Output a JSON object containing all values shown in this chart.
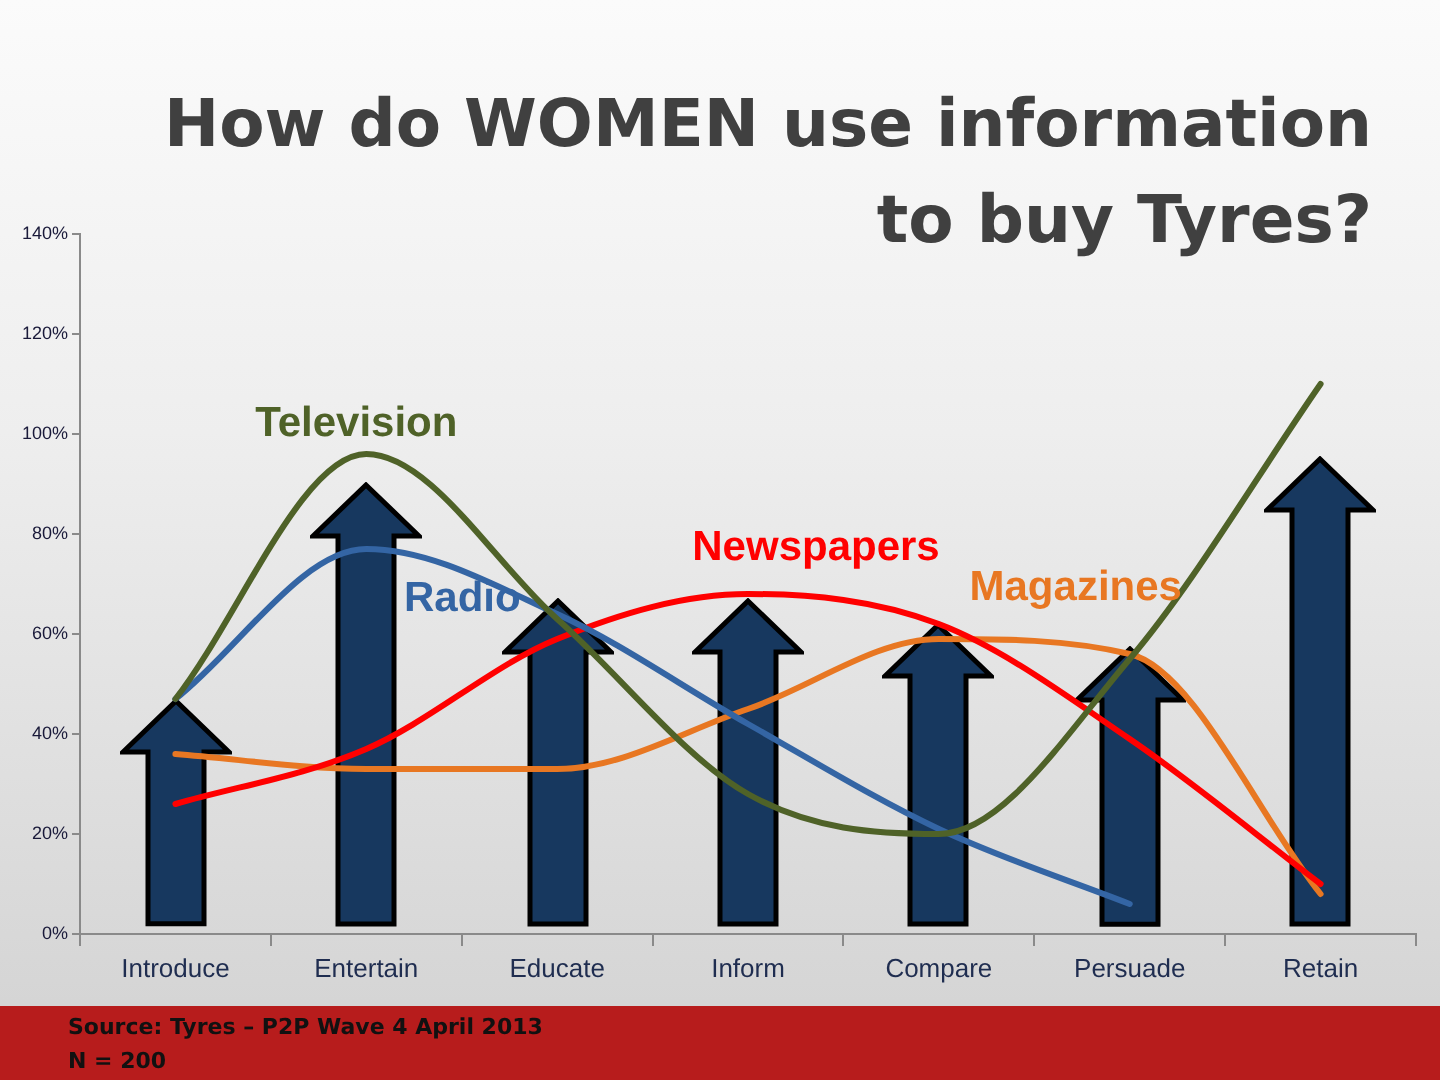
{
  "chart_data": {
    "type": "line",
    "title": "How do WOMEN use information to buy Tyres?",
    "categories": [
      "Introduce",
      "Entertain",
      "Educate",
      "Inform",
      "Compare",
      "Persuade",
      "Retain"
    ],
    "series": [
      {
        "name": "Television",
        "color": "#4f6228",
        "values": [
          47,
          96,
          63,
          28,
          20,
          55,
          110
        ]
      },
      {
        "name": "Radio",
        "color": "#3465a4",
        "values": [
          47,
          77,
          64,
          42,
          21,
          6,
          null
        ]
      },
      {
        "name": "Newspapers",
        "color": "#ff0000",
        "values": [
          26,
          37,
          59,
          68,
          62,
          39,
          10
        ]
      },
      {
        "name": "Magazines",
        "color": "#e87722",
        "values": [
          36,
          33,
          33,
          45,
          59,
          56,
          8
        ]
      }
    ],
    "ylim": [
      0,
      140
    ],
    "yticks": [
      {
        "value": 0,
        "label": "0%"
      },
      {
        "value": 20,
        "label": "20%"
      },
      {
        "value": 40,
        "label": "40%"
      },
      {
        "value": 60,
        "label": "60%"
      },
      {
        "value": 80,
        "label": "80%"
      },
      {
        "value": 100,
        "label": "100%"
      },
      {
        "value": 120,
        "label": "120%"
      },
      {
        "value": 140,
        "label": "140%"
      }
    ],
    "marker": "none",
    "annotations": [
      "Source: Tyres – P2P Wave 4 April 2013",
      "N = 200"
    ]
  }
}
